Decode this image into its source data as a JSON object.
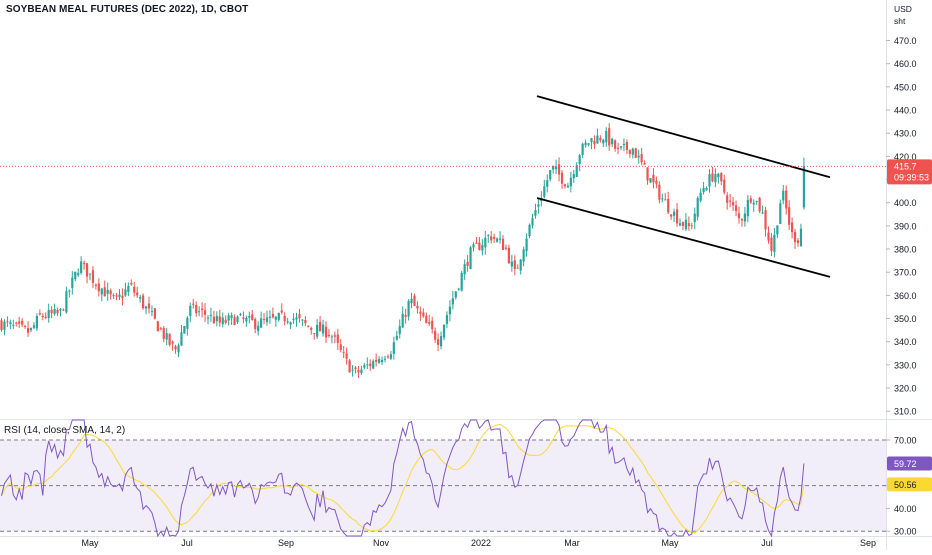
{
  "title": "SOYBEAN MEAL FUTURES (DEC 2022), 1D, CBOT",
  "currency": "USD",
  "unit": "sht",
  "chart_data": [
    {
      "type": "candlestick",
      "ylim": [
        305,
        478
      ],
      "y_ticks": [
        "470.0",
        "460.0",
        "450.0",
        "440.0",
        "430.0",
        "420.0",
        "410.0",
        "400.0",
        "390.0",
        "380.0",
        "370.0",
        "360.0",
        "350.0",
        "340.0",
        "330.0",
        "320.0",
        "310.0"
      ],
      "x_ticks": [
        "May",
        "Jul",
        "Sep",
        "Nov",
        "2022",
        "Mar",
        "May",
        "Jul",
        "Sep"
      ],
      "last_price": "415.7",
      "countdown": "09:39:53",
      "hidden_axis_label": "410.0",
      "price_line_color": "#ef5350",
      "up_color": "#26a69a",
      "down_color": "#ef5350",
      "anchors_close": [
        [
          0,
          348
        ],
        [
          30,
          344
        ],
        [
          40,
          351
        ],
        [
          60,
          352
        ],
        [
          80,
          374
        ],
        [
          95,
          366
        ],
        [
          115,
          357
        ],
        [
          130,
          364
        ],
        [
          150,
          352
        ],
        [
          165,
          342
        ],
        [
          175,
          336
        ],
        [
          190,
          354
        ],
        [
          205,
          352
        ],
        [
          220,
          348
        ],
        [
          235,
          350
        ],
        [
          255,
          348
        ],
        [
          270,
          349
        ],
        [
          290,
          351
        ],
        [
          310,
          346
        ],
        [
          330,
          344
        ],
        [
          345,
          332
        ],
        [
          355,
          326
        ],
        [
          372,
          331
        ],
        [
          392,
          337
        ],
        [
          410,
          358
        ],
        [
          425,
          348
        ],
        [
          438,
          341
        ],
        [
          452,
          358
        ],
        [
          470,
          378
        ],
        [
          490,
          386
        ],
        [
          505,
          381
        ],
        [
          515,
          369
        ],
        [
          525,
          384
        ],
        [
          540,
          402
        ],
        [
          552,
          415
        ],
        [
          568,
          408
        ],
        [
          580,
          422
        ],
        [
          590,
          427
        ],
        [
          605,
          429
        ],
        [
          618,
          422
        ],
        [
          632,
          424
        ],
        [
          650,
          410
        ],
        [
          665,
          400
        ],
        [
          680,
          392
        ],
        [
          690,
          389
        ],
        [
          702,
          406
        ],
        [
          715,
          413
        ],
        [
          725,
          404
        ],
        [
          740,
          392
        ],
        [
          752,
          404
        ],
        [
          762,
          396
        ],
        [
          772,
          379
        ],
        [
          782,
          405
        ],
        [
          792,
          386
        ],
        [
          800,
          384
        ],
        [
          806,
          415.7
        ]
      ],
      "annotations": {
        "channel_upper": [
          [
            537,
            446
          ],
          [
            830,
            411
          ]
        ],
        "channel_lower": [
          [
            537,
            402
          ],
          [
            830,
            368
          ]
        ]
      }
    },
    {
      "type": "line",
      "name": "RSI (14, close, SMA, 14, 2)",
      "ylim": [
        27,
        75
      ],
      "y_ticks": [
        "70.00",
        "50.00",
        "40.00",
        "30.00"
      ],
      "upper_band": 70,
      "middle_band": 50,
      "lower_band": 30,
      "rsi_last": "59.72",
      "rsi_ma_last": "50.56",
      "rsi_color": "#7e57c2",
      "ma_color": "#fdd835",
      "band_fill": "#ede7f6"
    }
  ]
}
